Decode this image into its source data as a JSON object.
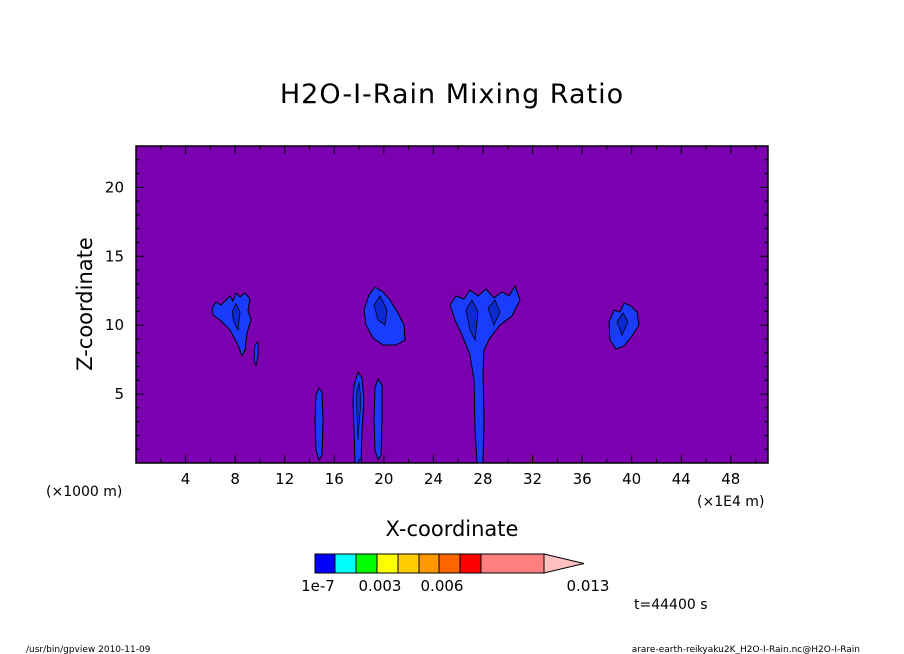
{
  "chart_data": {
    "type": "contour",
    "title": "H2O-I-Rain Mixing Ratio",
    "xlabel": "X-coordinate",
    "ylabel": "Z-coordinate",
    "x_scale_left": "(×1000 m)",
    "x_scale_right": "(×1E4 m)",
    "xlim": [
      0,
      51
    ],
    "ylim": [
      0,
      23
    ],
    "xticks": [
      4,
      8,
      12,
      16,
      20,
      24,
      28,
      32,
      36,
      40,
      44,
      48
    ],
    "yticks": [
      5,
      10,
      15,
      20
    ],
    "background_level": "below 1e-7",
    "levels": [
      {
        "color": "#0000ff"
      },
      {
        "color": "#00ffff"
      },
      {
        "color": "#00ff00"
      },
      {
        "color": "#ffff00"
      },
      {
        "color": "#ffcc00"
      },
      {
        "color": "#ff9900"
      },
      {
        "color": "#ff6600"
      },
      {
        "color": "#ff0000"
      },
      {
        "color": "#ff8080"
      }
    ],
    "colorbar_labels": [
      "1e-7",
      "0.003",
      "0.006",
      "0.013"
    ],
    "time_label": "t=44400 s",
    "features": [
      {
        "name": "cloud at x≈8",
        "x_center": 8,
        "z_center": 10.2
      },
      {
        "name": "cloud at x≈20",
        "x_center": 20,
        "z_center": 10.5
      },
      {
        "name": "cloud at x≈28",
        "x_center": 28,
        "z_center": 10.5
      },
      {
        "name": "cloud at x≈40",
        "x_center": 40,
        "z_center": 10.0
      },
      {
        "name": "column at x≈15",
        "x_center": 15,
        "z_top": 5.4
      },
      {
        "name": "column at x≈18",
        "x_center": 18,
        "z_top": 6.5
      },
      {
        "name": "column at x≈19.7",
        "x_center": 19.7,
        "z_top": 6.0
      }
    ]
  },
  "footer": {
    "left": "/usr/bin/gpview  2010-11-09",
    "right": "arare-earth-reikyaku2K_H2O-I-Rain.nc@H2O-I-Rain"
  },
  "colors": {
    "background": "#7a00b0",
    "contour_fill": "#1a3cff",
    "contour_line": "#000000"
  }
}
